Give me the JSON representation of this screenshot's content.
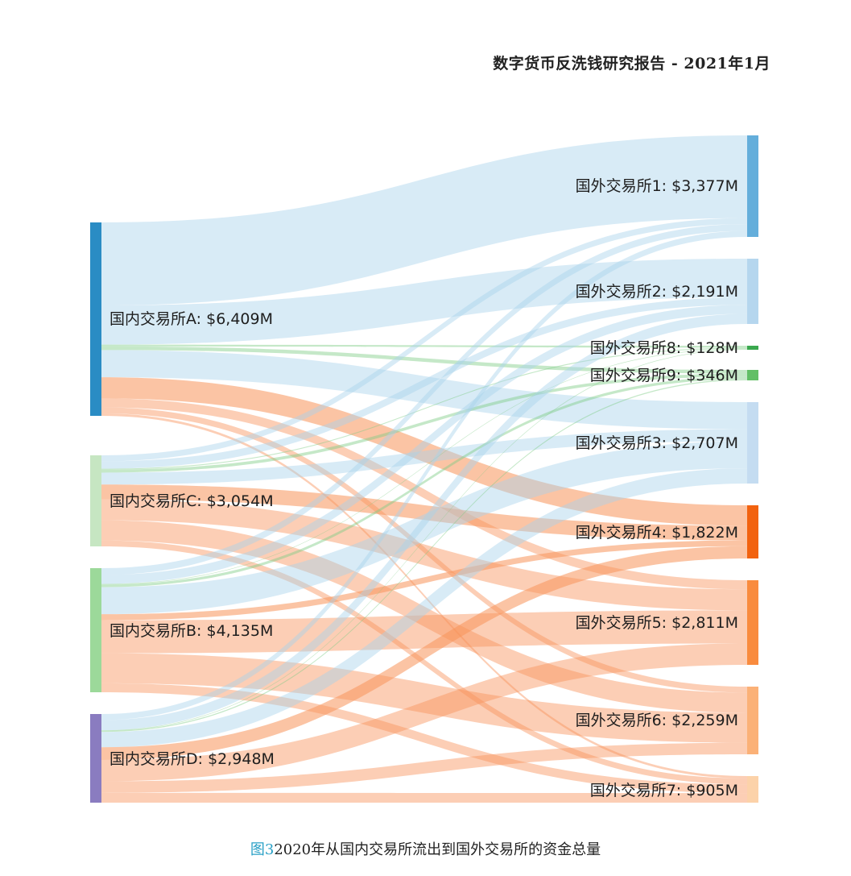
{
  "header": {
    "report_title": "数字货币反洗钱研究报告 - 2021年1月"
  },
  "caption": {
    "figure_number": "图3",
    "text": "2020年从国内交易所流出到国外交易所的资金总量"
  },
  "colors": {
    "source_A": "#2a8cc4",
    "source_C": "#c6e6c2",
    "source_B": "#9cd99a",
    "source_D": "#8a7cc0",
    "target_1": "#64aedb",
    "target_2": "#b5d6ee",
    "target_8": "#3aa84e",
    "target_9": "#62bf66",
    "target_3": "#c4dcf1",
    "target_4": "#f2620f",
    "target_5": "#f98b3e",
    "target_6": "#fbb177",
    "target_7": "#fcd2a9",
    "blue_link": "#a9d2ec",
    "green_link": "#7fcc84",
    "orange_link": "#f8935a"
  },
  "chart_data": {
    "type": "sankey",
    "units": "M USD",
    "sources": [
      {
        "id": "A",
        "label": "国内交易所A: $6,409M",
        "value": 6409
      },
      {
        "id": "C",
        "label": "国内交易所C: $3,054M",
        "value": 3054
      },
      {
        "id": "B",
        "label": "国内交易所B: $4,135M",
        "value": 4135
      },
      {
        "id": "D",
        "label": "国内交易所D: $2,948M",
        "value": 2948
      }
    ],
    "targets": [
      {
        "id": "1",
        "label": "国外交易所1: $3,377M",
        "value": 3377
      },
      {
        "id": "2",
        "label": "国外交易所2: $2,191M",
        "value": 2191
      },
      {
        "id": "8",
        "label": "国外交易所8: $128M",
        "value": 128
      },
      {
        "id": "9",
        "label": "国外交易所9: $346M",
        "value": 346
      },
      {
        "id": "3",
        "label": "国外交易所3: $2,707M",
        "value": 2707
      },
      {
        "id": "4",
        "label": "国外交易所4: $1,822M",
        "value": 1822
      },
      {
        "id": "5",
        "label": "国外交易所5: $2,811M",
        "value": 2811
      },
      {
        "id": "6",
        "label": "国外交易所6: $2,259M",
        "value": 2259
      },
      {
        "id": "7",
        "label": "国外交易所7: $905M",
        "value": 905
      }
    ],
    "links": [
      {
        "source": "A",
        "target": "1",
        "value": 2750
      },
      {
        "source": "A",
        "target": "2",
        "value": 1300
      },
      {
        "source": "A",
        "target": "8",
        "value": 60
      },
      {
        "source": "A",
        "target": "9",
        "value": 120
      },
      {
        "source": "A",
        "target": "3",
        "value": 900
      },
      {
        "source": "A",
        "target": "4",
        "value": 700
      },
      {
        "source": "A",
        "target": "5",
        "value": 300
      },
      {
        "source": "A",
        "target": "6",
        "value": 200
      },
      {
        "source": "A",
        "target": "7",
        "value": 79
      },
      {
        "source": "C",
        "target": "1",
        "value": 200
      },
      {
        "source": "C",
        "target": "2",
        "value": 250
      },
      {
        "source": "C",
        "target": "8",
        "value": 30
      },
      {
        "source": "C",
        "target": "9",
        "value": 100
      },
      {
        "source": "C",
        "target": "3",
        "value": 400
      },
      {
        "source": "C",
        "target": "4",
        "value": 500
      },
      {
        "source": "C",
        "target": "5",
        "value": 700
      },
      {
        "source": "C",
        "target": "6",
        "value": 674
      },
      {
        "source": "C",
        "target": "7",
        "value": 200
      },
      {
        "source": "B",
        "target": "1",
        "value": 227
      },
      {
        "source": "B",
        "target": "2",
        "value": 300
      },
      {
        "source": "B",
        "target": "8",
        "value": 18
      },
      {
        "source": "B",
        "target": "9",
        "value": 90
      },
      {
        "source": "B",
        "target": "3",
        "value": 900
      },
      {
        "source": "B",
        "target": "4",
        "value": 200
      },
      {
        "source": "B",
        "target": "5",
        "value": 1100
      },
      {
        "source": "B",
        "target": "6",
        "value": 1000
      },
      {
        "source": "B",
        "target": "7",
        "value": 300
      },
      {
        "source": "D",
        "target": "1",
        "value": 200
      },
      {
        "source": "D",
        "target": "2",
        "value": 341
      },
      {
        "source": "D",
        "target": "8",
        "value": 20
      },
      {
        "source": "D",
        "target": "9",
        "value": 36
      },
      {
        "source": "D",
        "target": "3",
        "value": 507
      },
      {
        "source": "D",
        "target": "4",
        "value": 422
      },
      {
        "source": "D",
        "target": "5",
        "value": 711
      },
      {
        "source": "D",
        "target": "6",
        "value": 385
      },
      {
        "source": "D",
        "target": "7",
        "value": 326
      }
    ]
  }
}
